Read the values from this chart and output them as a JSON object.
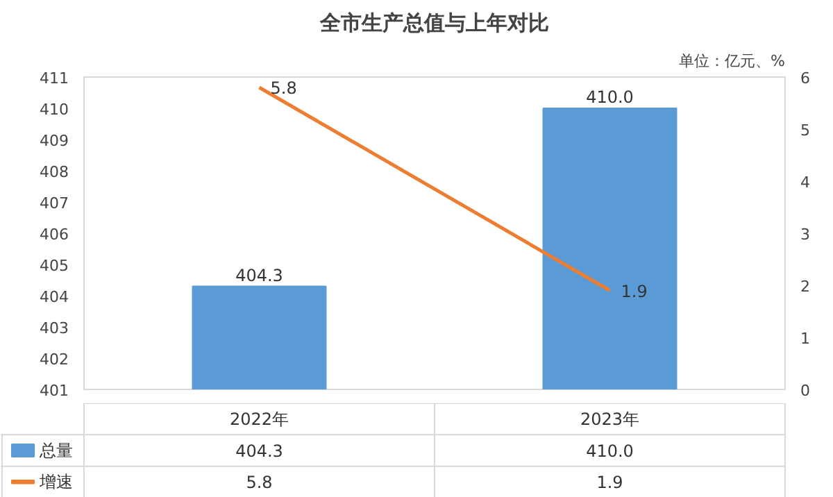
{
  "chart_data": {
    "type": "bar",
    "title": "全市生产总值与上年对比",
    "subtitle": "单位：亿元、%",
    "categories": [
      "2022年",
      "2023年"
    ],
    "series": [
      {
        "name": "总量",
        "color": "#5b9bd5",
        "values": [
          404.3,
          410.0
        ],
        "value_labels": [
          "404.3",
          "410.0"
        ]
      },
      {
        "name": "增速",
        "type": "line",
        "axis": "y2",
        "color": "#ed7d31",
        "values": [
          5.8,
          1.9
        ],
        "value_labels": [
          "5.8",
          "1.9"
        ]
      }
    ],
    "ylim": [
      401,
      411
    ],
    "yticks": [
      401,
      402,
      403,
      404,
      405,
      406,
      407,
      408,
      409,
      410,
      411
    ],
    "y2lim": [
      0,
      6
    ],
    "y2ticks": [
      0,
      1,
      2,
      3,
      4,
      5,
      6
    ],
    "grid": false,
    "legend": "bottom",
    "marker": "none",
    "line_style": "solid"
  }
}
